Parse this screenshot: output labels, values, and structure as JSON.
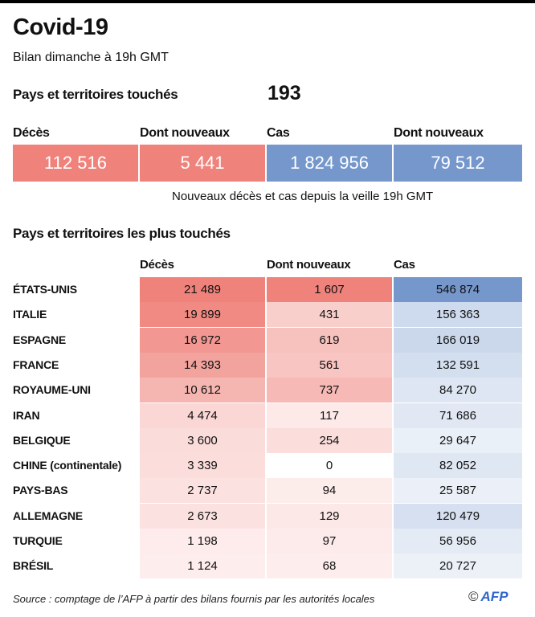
{
  "title": "Covid-19",
  "subtitle": "Bilan dimanche à 19h GMT",
  "countries_label": "Pays et territoires touchés",
  "countries_value": "193",
  "colors": {
    "red": "#ef837c",
    "blue": "#7597cc"
  },
  "summary": [
    {
      "label": "Décès",
      "value": "112 516",
      "color": "red"
    },
    {
      "label": "Dont nouveaux",
      "value": "5 441",
      "color": "red"
    },
    {
      "label": "Cas",
      "value": "1 824 956",
      "color": "blue"
    },
    {
      "label": "Dont nouveaux",
      "value": "79 512",
      "color": "blue"
    }
  ],
  "note": "Nouveaux décès et cas depuis la veille 19h GMT",
  "section_title": "Pays et territoires les plus touchés",
  "chart_data": {
    "type": "table",
    "title": "Pays et territoires les plus touchés",
    "columns": [
      "Décès",
      "Dont nouveaux",
      "Cas"
    ],
    "rows": [
      {
        "name": "ÉTATS-UNIS",
        "deces": 21489,
        "nouveaux": 1607,
        "cas": 546874
      },
      {
        "name": "ITALIE",
        "deces": 19899,
        "nouveaux": 431,
        "cas": 156363
      },
      {
        "name": "ESPAGNE",
        "deces": 16972,
        "nouveaux": 619,
        "cas": 166019
      },
      {
        "name": "FRANCE",
        "deces": 14393,
        "nouveaux": 561,
        "cas": 132591
      },
      {
        "name": "ROYAUME-UNI",
        "deces": 10612,
        "nouveaux": 737,
        "cas": 84270
      },
      {
        "name": "IRAN",
        "deces": 4474,
        "nouveaux": 117,
        "cas": 71686
      },
      {
        "name": "BELGIQUE",
        "deces": 3600,
        "nouveaux": 254,
        "cas": 29647
      },
      {
        "name": "CHINE (continentale)",
        "deces": 3339,
        "nouveaux": 0,
        "cas": 82052
      },
      {
        "name": "PAYS-BAS",
        "deces": 2737,
        "nouveaux": 94,
        "cas": 25587
      },
      {
        "name": "ALLEMAGNE",
        "deces": 2673,
        "nouveaux": 129,
        "cas": 120479
      },
      {
        "name": "TURQUIE",
        "deces": 1198,
        "nouveaux": 97,
        "cas": 56956
      },
      {
        "name": "BRÉSIL",
        "deces": 1124,
        "nouveaux": 68,
        "cas": 20727
      }
    ]
  },
  "source": "Source : comptage de l’AFP à partir des bilans fournis par les autorités locales",
  "logo": {
    "copyright": "©",
    "text": "AFP"
  }
}
